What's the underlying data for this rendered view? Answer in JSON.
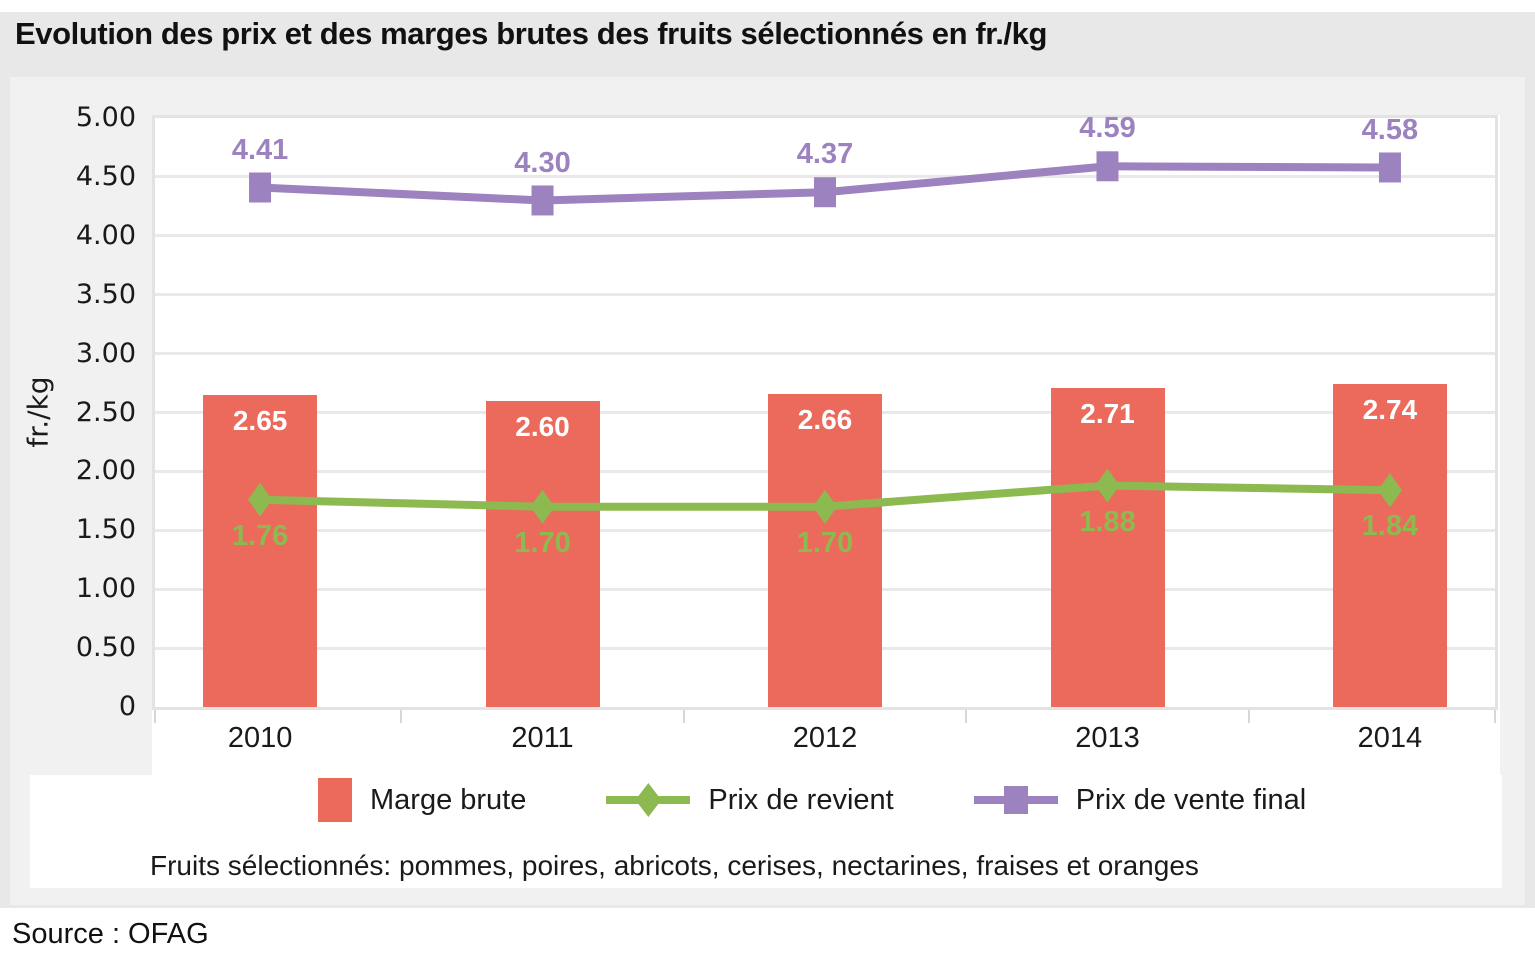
{
  "title": "Evolution des prix et des marges brutes des fruits sélectionnés en fr./kg",
  "note": "Fruits sélectionnés: pommes, poires, abricots, cerises, nectarines, fraises et oranges",
  "source": "Source : OFAG",
  "colors": {
    "background_outer": "#e8e8e8",
    "background_panel": "#f1f1f1",
    "plot_background": "#ffffff",
    "gridline": "#e9e9e9",
    "plot_border": "#e3e3e3",
    "axis_tick": "#d7d7d7",
    "bar_red": "#ec6a5c",
    "line_green": "#8cba50",
    "line_purple": "#9c82be",
    "bar_label_text": "#ffffff",
    "text": "#1a1a1a"
  },
  "chart_data": {
    "type": "bar",
    "subtype": "combo-bar-line",
    "categories": [
      "2010",
      "2011",
      "2012",
      "2013",
      "2014"
    ],
    "series": [
      {
        "name": "Marge brute",
        "type": "bar",
        "color": "#ec6a5c",
        "values": [
          2.65,
          2.6,
          2.66,
          2.71,
          2.74
        ]
      },
      {
        "name": "Prix de revient",
        "type": "line",
        "marker": "diamond",
        "color": "#8cba50",
        "values": [
          1.76,
          1.7,
          1.7,
          1.88,
          1.84
        ]
      },
      {
        "name": "Prix de vente final",
        "type": "line",
        "marker": "square",
        "color": "#9c82be",
        "values": [
          4.41,
          4.3,
          4.37,
          4.59,
          4.58
        ]
      }
    ],
    "xlabel": "",
    "ylabel": "fr./kg",
    "ylim": [
      0,
      5
    ],
    "ytick_step": 0.5,
    "yticks": [
      "5.00",
      "4.50",
      "4.00",
      "3.50",
      "3.00",
      "2.50",
      "2.00",
      "1.50",
      "1.00",
      "0.50",
      "0"
    ],
    "grid": true,
    "data_labels": true,
    "legend_position": "bottom"
  }
}
